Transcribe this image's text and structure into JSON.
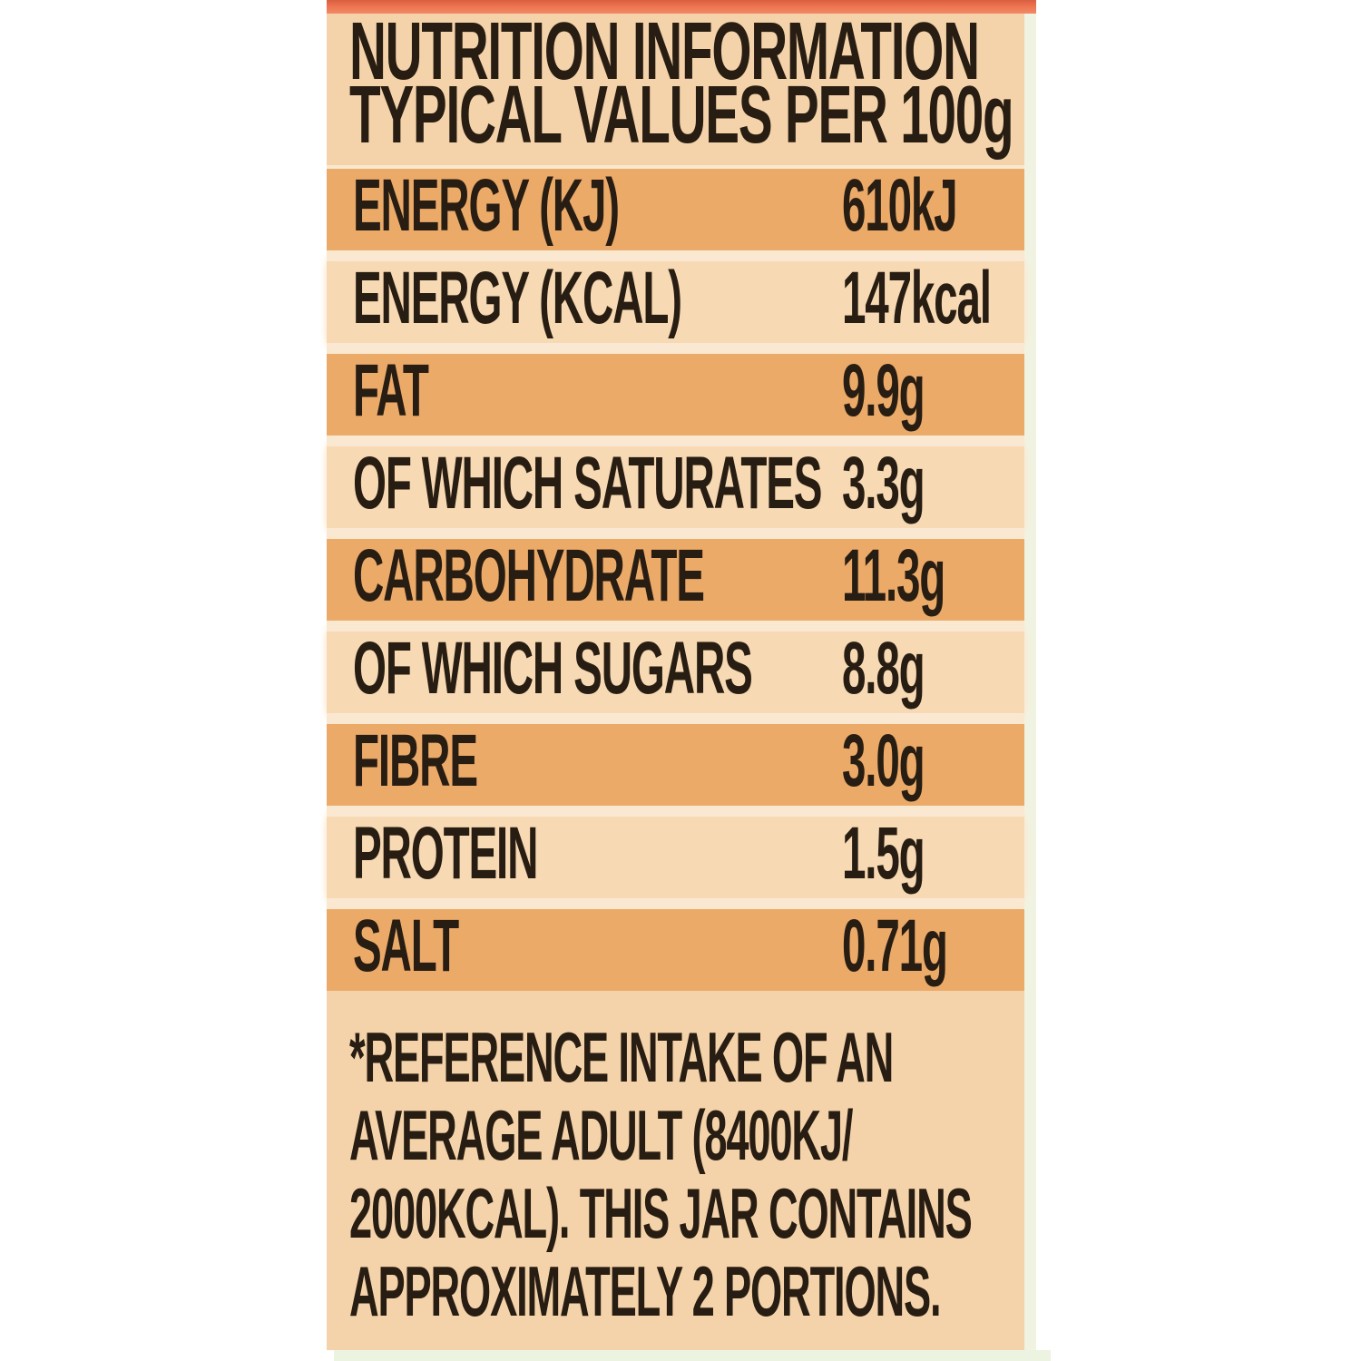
{
  "label": {
    "colors": {
      "background": "#f5d3aa",
      "top_bar": "#ee7350",
      "dark_row": "#ecaa69",
      "light_row": "#f7d9b3",
      "row_gap": "#f9e8d0",
      "edge_strip": "#f1f3e2",
      "bottom_strip": "#edf3e1",
      "text": "#281d12"
    },
    "title_line1": "NUTRITION INFORMATION",
    "title_line2": "TYPICAL VALUES PER 100g",
    "rows": [
      {
        "name": "ENERGY (KJ)",
        "value": "610kJ",
        "shade": "dark"
      },
      {
        "name": "ENERGY (KCAL)",
        "value": "147kcal",
        "shade": "light"
      },
      {
        "name": "FAT",
        "value": "9.9g",
        "shade": "dark"
      },
      {
        "name": "OF WHICH SATURATES",
        "value": "3.3g",
        "shade": "light"
      },
      {
        "name": "CARBOHYDRATE",
        "value": "11.3g",
        "shade": "dark"
      },
      {
        "name": "OF WHICH SUGARS",
        "value": "8.8g",
        "shade": "light"
      },
      {
        "name": "FIBRE",
        "value": "3.0g",
        "shade": "dark"
      },
      {
        "name": "PROTEIN",
        "value": "1.5g",
        "shade": "light"
      },
      {
        "name": "SALT",
        "value": "0.71g",
        "shade": "dark"
      }
    ],
    "footnote_lines": [
      "*REFERENCE INTAKE OF AN",
      "AVERAGE ADULT (8400KJ/",
      "2000KCAL). THIS JAR CONTAINS",
      "APPROXIMATELY 2 PORTIONS."
    ]
  }
}
